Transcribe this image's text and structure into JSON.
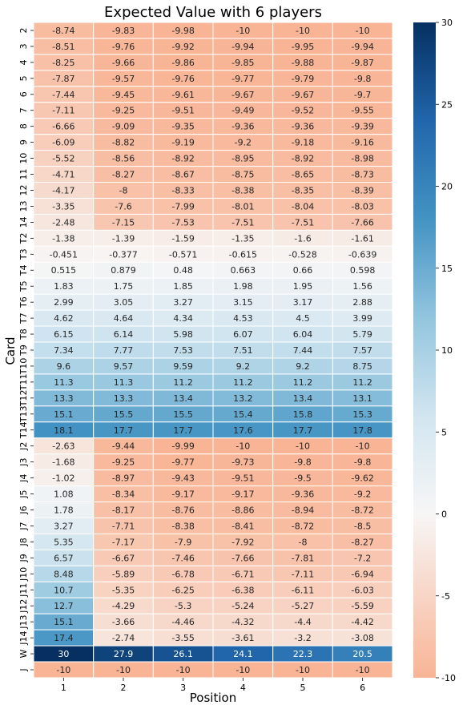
{
  "chart_data": {
    "type": "heatmap",
    "title": "Expected Value with 6 players",
    "xlabel": "Position",
    "ylabel": "Card",
    "x_categories": [
      "1",
      "2",
      "3",
      "4",
      "5",
      "6"
    ],
    "y_categories": [
      "2",
      "3",
      "4",
      "5",
      "6",
      "7",
      "8",
      "9",
      "10",
      "11",
      "12",
      "13",
      "14",
      "T2",
      "T3",
      "T4",
      "T5",
      "T6",
      "T7",
      "T8",
      "T9",
      "T10",
      "T11",
      "T12",
      "T13",
      "T14",
      "J2",
      "J3",
      "J4",
      "J5",
      "J6",
      "J7",
      "J8",
      "J9",
      "J10",
      "J11",
      "J12",
      "J13",
      "J14",
      "W",
      "J"
    ],
    "values": [
      [
        "-8.74",
        "-9.83",
        "-9.98",
        "-10",
        "-10",
        "-10"
      ],
      [
        "-8.51",
        "-9.76",
        "-9.92",
        "-9.94",
        "-9.95",
        "-9.94"
      ],
      [
        "-8.25",
        "-9.66",
        "-9.86",
        "-9.85",
        "-9.88",
        "-9.87"
      ],
      [
        "-7.87",
        "-9.57",
        "-9.76",
        "-9.77",
        "-9.79",
        "-9.8"
      ],
      [
        "-7.44",
        "-9.45",
        "-9.61",
        "-9.67",
        "-9.67",
        "-9.7"
      ],
      [
        "-7.11",
        "-9.25",
        "-9.51",
        "-9.49",
        "-9.52",
        "-9.55"
      ],
      [
        "-6.66",
        "-9.09",
        "-9.35",
        "-9.36",
        "-9.36",
        "-9.39"
      ],
      [
        "-6.09",
        "-8.82",
        "-9.19",
        "-9.2",
        "-9.18",
        "-9.16"
      ],
      [
        "-5.52",
        "-8.56",
        "-8.92",
        "-8.95",
        "-8.92",
        "-8.98"
      ],
      [
        "-4.71",
        "-8.27",
        "-8.67",
        "-8.75",
        "-8.65",
        "-8.73"
      ],
      [
        "-4.17",
        "-8",
        "-8.33",
        "-8.38",
        "-8.35",
        "-8.39"
      ],
      [
        "-3.35",
        "-7.6",
        "-7.99",
        "-8.01",
        "-8.04",
        "-8.03"
      ],
      [
        "-2.48",
        "-7.15",
        "-7.53",
        "-7.51",
        "-7.51",
        "-7.66"
      ],
      [
        "-1.38",
        "-1.39",
        "-1.59",
        "-1.35",
        "-1.6",
        "-1.61"
      ],
      [
        "-0.451",
        "-0.377",
        "-0.571",
        "-0.615",
        "-0.528",
        "-0.639"
      ],
      [
        "0.515",
        "0.879",
        "0.48",
        "0.663",
        "0.66",
        "0.598"
      ],
      [
        "1.83",
        "1.75",
        "1.85",
        "1.98",
        "1.95",
        "1.56"
      ],
      [
        "2.99",
        "3.05",
        "3.27",
        "3.15",
        "3.17",
        "2.88"
      ],
      [
        "4.62",
        "4.64",
        "4.34",
        "4.53",
        "4.5",
        "3.99"
      ],
      [
        "6.15",
        "6.14",
        "5.98",
        "6.07",
        "6.04",
        "5.79"
      ],
      [
        "7.34",
        "7.77",
        "7.53",
        "7.51",
        "7.44",
        "7.57"
      ],
      [
        "9.6",
        "9.57",
        "9.59",
        "9.2",
        "9.2",
        "8.75"
      ],
      [
        "11.3",
        "11.3",
        "11.2",
        "11.2",
        "11.2",
        "11.2"
      ],
      [
        "13.3",
        "13.3",
        "13.4",
        "13.2",
        "13.4",
        "13.1"
      ],
      [
        "15.1",
        "15.5",
        "15.5",
        "15.4",
        "15.8",
        "15.3"
      ],
      [
        "18.1",
        "17.7",
        "17.7",
        "17.6",
        "17.7",
        "17.8"
      ],
      [
        "-2.63",
        "-9.44",
        "-9.99",
        "-10",
        "-10",
        "-10"
      ],
      [
        "-1.68",
        "-9.25",
        "-9.77",
        "-9.73",
        "-9.8",
        "-9.8"
      ],
      [
        "-1.02",
        "-8.97",
        "-9.43",
        "-9.51",
        "-9.5",
        "-9.62"
      ],
      [
        "1.08",
        "-8.34",
        "-9.17",
        "-9.17",
        "-9.36",
        "-9.2"
      ],
      [
        "1.78",
        "-8.17",
        "-8.76",
        "-8.86",
        "-8.94",
        "-8.72"
      ],
      [
        "3.27",
        "-7.71",
        "-8.38",
        "-8.41",
        "-8.72",
        "-8.5"
      ],
      [
        "5.35",
        "-7.17",
        "-7.9",
        "-7.92",
        "-8",
        "-8.27"
      ],
      [
        "6.57",
        "-6.67",
        "-7.46",
        "-7.66",
        "-7.81",
        "-7.2"
      ],
      [
        "8.48",
        "-5.89",
        "-6.78",
        "-6.71",
        "-7.11",
        "-6.94"
      ],
      [
        "10.7",
        "-5.35",
        "-6.25",
        "-6.38",
        "-6.11",
        "-6.03"
      ],
      [
        "12.7",
        "-4.29",
        "-5.3",
        "-5.24",
        "-5.27",
        "-5.59"
      ],
      [
        "15.1",
        "-3.66",
        "-4.46",
        "-4.32",
        "-4.4",
        "-4.42"
      ],
      [
        "17.4",
        "-2.74",
        "-3.55",
        "-3.61",
        "-3.2",
        "-3.08"
      ],
      [
        "30",
        "27.9",
        "26.1",
        "24.1",
        "22.3",
        "20.5"
      ],
      [
        "-10",
        "-10",
        "-10",
        "-10",
        "-10",
        "-10"
      ]
    ],
    "colorbar": {
      "vmin": -10,
      "vmax": 30,
      "ticks": [
        "-10",
        "-5",
        "0",
        "5",
        "10",
        "15",
        "20",
        "25",
        "30"
      ]
    },
    "colormap": {
      "center": 0,
      "negative_end": "#f8b495",
      "neutral": "#f7f6f6",
      "positive_stops": [
        "#f7f6f6",
        "#d1e5f0",
        "#92c5de",
        "#4393c3",
        "#2166ac",
        "#053061"
      ]
    },
    "grid": true
  }
}
